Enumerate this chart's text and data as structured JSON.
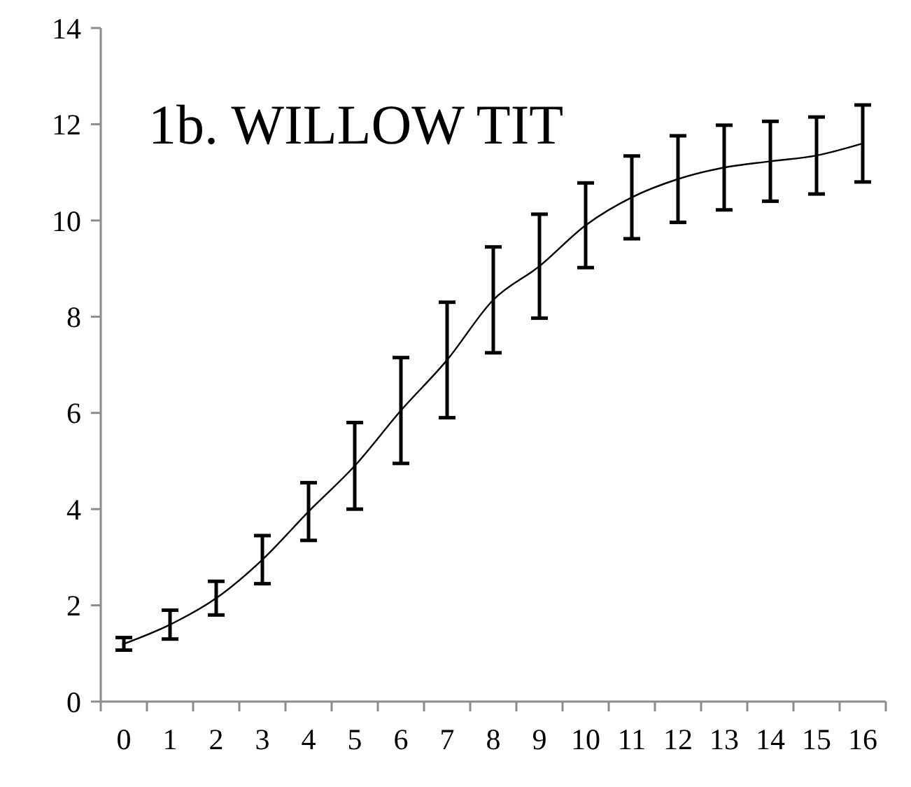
{
  "chart_data": {
    "type": "line",
    "title": "1b. WILLOW TIT",
    "categories": [
      "0",
      "1",
      "2",
      "3",
      "4",
      "5",
      "6",
      "7",
      "8",
      "9",
      "10",
      "11",
      "12",
      "13",
      "14",
      "15",
      "16"
    ],
    "values": [
      1.2,
      1.6,
      2.15,
      2.95,
      3.95,
      4.9,
      6.05,
      7.1,
      8.35,
      9.05,
      9.9,
      10.48,
      10.86,
      11.1,
      11.23,
      11.35,
      11.6
    ],
    "errors": [
      0.13,
      0.3,
      0.35,
      0.5,
      0.6,
      0.9,
      1.1,
      1.2,
      1.1,
      1.08,
      0.88,
      0.86,
      0.9,
      0.88,
      0.83,
      0.8,
      0.8
    ],
    "color": "#000000",
    "ylim": [
      0,
      14
    ],
    "yticks": [
      0,
      2,
      4,
      6,
      8,
      10,
      12,
      14
    ],
    "grid": false,
    "marker": "none",
    "line_style": "solid"
  }
}
